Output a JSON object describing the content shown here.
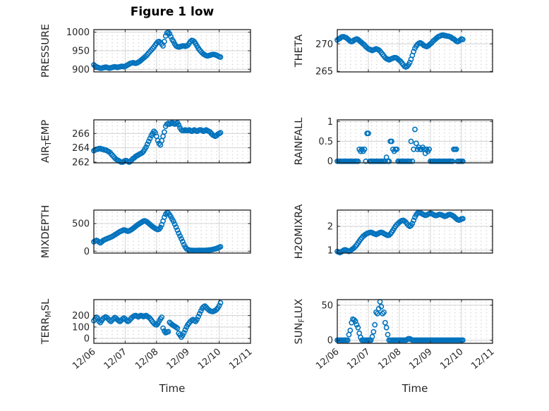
{
  "title": "Figure 1 low",
  "xlabel": "Time",
  "x_tick_labels": [
    "12/06",
    "12/07",
    "12/08",
    "12/09",
    "12/10",
    "12/11"
  ],
  "x_axis_hours": [
    0,
    120
  ],
  "x_major_every_hours": 24,
  "colors": {
    "marker": "#0072BD",
    "axis": "#1f1f1f",
    "grid": "#d4d4d4",
    "minor_dots": "#c4c4c4",
    "tick_text": "#262626"
  },
  "chart_data": [
    {
      "type": "scatter",
      "name": "PRESSURE",
      "grid_row": 0,
      "grid_col": 0,
      "ylabel_parts": [
        {
          "t": "PRESSURE"
        }
      ],
      "ylim": [
        893,
        1007
      ],
      "yticks": [
        900,
        950,
        1000
      ],
      "x_start_hour": 0,
      "x_step_hours": 1,
      "values": [
        912,
        909,
        907,
        905,
        904,
        903,
        903,
        904,
        905,
        906,
        905,
        904,
        903,
        904,
        905,
        906,
        907,
        906,
        905,
        906,
        907,
        908,
        908,
        907,
        908,
        910,
        912,
        914,
        916,
        917,
        918,
        917,
        916,
        917,
        919,
        921,
        924,
        927,
        930,
        933,
        936,
        940,
        944,
        948,
        952,
        956,
        960,
        965,
        970,
        974,
        975,
        972,
        968,
        963,
        975,
        990,
        998,
        1000,
        996,
        988,
        980,
        975,
        968,
        963,
        961,
        960,
        961,
        962,
        963,
        963,
        962,
        963,
        965,
        970,
        975,
        978,
        977,
        974,
        969,
        963,
        957,
        952,
        948,
        944,
        941,
        939,
        937,
        936,
        937,
        938,
        939,
        940,
        940,
        939,
        938,
        936,
        934,
        933
      ]
    },
    {
      "type": "scatter",
      "name": "THETA",
      "grid_row": 0,
      "grid_col": 1,
      "ylabel_parts": [
        {
          "t": "THETA"
        }
      ],
      "ylim": [
        264.9,
        272.6
      ],
      "yticks": [
        265,
        270
      ],
      "x_start_hour": 0,
      "x_step_hours": 1,
      "values": [
        270.7,
        270.9,
        271.0,
        271.2,
        271.3,
        271.3,
        271.2,
        271.1,
        270.9,
        270.7,
        270.5,
        270.4,
        270.5,
        270.7,
        270.8,
        270.9,
        270.8,
        270.6,
        270.4,
        270.2,
        270.0,
        269.8,
        269.5,
        269.3,
        269.1,
        269.0,
        268.9,
        268.8,
        268.9,
        269.0,
        269.1,
        269.0,
        268.9,
        268.7,
        268.4,
        268.1,
        267.8,
        267.5,
        267.3,
        267.2,
        267.1,
        267.2,
        267.3,
        267.4,
        267.5,
        267.5,
        267.4,
        267.2,
        267.0,
        266.8,
        266.5,
        266.2,
        265.9,
        265.8,
        265.9,
        266.2,
        266.6,
        267.2,
        267.9,
        268.6,
        269.2,
        269.6,
        269.9,
        270.1,
        270.2,
        270.1,
        269.9,
        269.7,
        269.6,
        269.5,
        269.6,
        269.8,
        270.0,
        270.2,
        270.5,
        270.7,
        270.9,
        271.1,
        271.3,
        271.4,
        271.5,
        271.6,
        271.6,
        271.5,
        271.5,
        271.4,
        271.4,
        271.3,
        271.2,
        271.0,
        270.9,
        270.7,
        270.5,
        270.4,
        270.5,
        270.7,
        270.9,
        270.8
      ]
    },
    {
      "type": "scatter",
      "name": "AIR_TEMP",
      "grid_row": 1,
      "grid_col": 0,
      "ylabel_parts": [
        {
          "t": "AIR"
        },
        {
          "t": "T",
          "sub": true
        },
        {
          "t": "EMP"
        }
      ],
      "ylim": [
        261.9,
        267.9
      ],
      "yticks": [
        262,
        264,
        266
      ],
      "x_start_hour": 0,
      "x_step_hours": 1,
      "values": [
        263.6,
        263.7,
        263.8,
        263.8,
        263.9,
        263.9,
        263.8,
        263.8,
        263.7,
        263.7,
        263.6,
        263.5,
        263.4,
        263.2,
        263.0,
        262.8,
        262.6,
        262.4,
        262.3,
        262.2,
        262.1,
        262.0,
        262.0,
        262.1,
        262.2,
        262.2,
        262.1,
        262.0,
        262.1,
        262.3,
        262.5,
        262.6,
        262.8,
        262.9,
        263.0,
        263.1,
        263.2,
        263.3,
        263.5,
        263.8,
        264.1,
        264.5,
        264.9,
        265.3,
        265.7,
        266.0,
        266.3,
        266.1,
        265.6,
        265.0,
        264.6,
        264.4,
        265.0,
        265.6,
        266.2,
        267.0,
        267.3,
        267.4,
        267.3,
        267.4,
        267.5,
        267.4,
        267.3,
        267.4,
        267.5,
        267.2,
        266.8,
        266.5,
        266.4,
        266.4,
        266.5,
        266.4,
        266.4,
        266.5,
        266.4,
        266.3,
        266.4,
        266.5,
        266.4,
        266.3,
        266.4,
        266.5,
        266.5,
        266.4,
        266.3,
        266.4,
        266.5,
        266.4,
        266.3,
        266.2,
        266.0,
        265.8,
        265.7,
        265.6,
        265.7,
        265.9,
        266.0,
        266.1
      ]
    },
    {
      "type": "scatter",
      "name": "RAINFALL",
      "grid_row": 1,
      "grid_col": 1,
      "ylabel_parts": [
        {
          "t": "RAINFALL"
        }
      ],
      "ylim": [
        -0.04,
        1.04
      ],
      "yticks": [
        0,
        0.5,
        1
      ],
      "x_start_hour": 0,
      "x_step_hours": 1,
      "values": [
        0,
        0,
        0,
        0,
        0,
        0,
        0,
        0,
        0,
        0,
        0,
        0,
        0,
        0,
        0,
        0,
        0,
        0.3,
        0.25,
        0.3,
        0.25,
        0.3,
        0,
        0.7,
        0.7,
        0,
        0,
        0,
        0,
        0,
        0,
        0,
        0,
        0,
        0,
        0,
        0,
        0,
        0.1,
        0,
        0,
        0.5,
        0.5,
        0.3,
        0.25,
        0.3,
        0.3,
        0,
        0,
        0,
        0,
        0,
        0,
        0,
        0,
        0,
        0,
        0.5,
        0,
        0.3,
        0.8,
        0.45,
        0.3,
        0.35,
        0.3,
        0.3,
        0.35,
        0.3,
        0.2,
        0.3,
        0.25,
        0.3,
        0,
        0,
        0,
        0,
        0,
        0,
        0,
        0,
        0,
        0,
        0,
        0,
        0,
        0,
        0,
        0,
        0,
        0,
        0.3,
        0.3,
        0.3,
        0,
        0,
        0,
        0,
        0
      ]
    },
    {
      "type": "scatter",
      "name": "MIXDEPTH",
      "grid_row": 2,
      "grid_col": 0,
      "ylabel_parts": [
        {
          "t": "MIXDEPTH"
        }
      ],
      "ylim": [
        -35,
        745
      ],
      "yticks": [
        0,
        500
      ],
      "x_start_hour": 0,
      "x_step_hours": 1,
      "values": [
        170,
        185,
        195,
        185,
        165,
        150,
        170,
        190,
        205,
        215,
        225,
        235,
        245,
        255,
        265,
        280,
        295,
        310,
        325,
        340,
        355,
        365,
        375,
        385,
        380,
        370,
        362,
        368,
        380,
        395,
        412,
        430,
        450,
        468,
        485,
        500,
        515,
        530,
        545,
        550,
        540,
        525,
        505,
        485,
        465,
        445,
        428,
        412,
        400,
        392,
        400,
        430,
        480,
        545,
        615,
        670,
        700,
        690,
        660,
        625,
        580,
        540,
        490,
        435,
        380,
        325,
        275,
        225,
        175,
        120,
        75,
        45,
        28,
        20,
        16,
        14,
        13,
        12,
        12,
        13,
        14,
        15,
        15,
        14,
        13,
        14,
        16,
        18,
        20,
        22,
        25,
        30,
        36,
        42,
        50,
        58,
        68,
        80
      ]
    },
    {
      "type": "scatter",
      "name": "H2OMIXRA",
      "grid_row": 2,
      "grid_col": 1,
      "ylabel_parts": [
        {
          "t": "H2OMIXRA"
        }
      ],
      "ylim": [
        0.88,
        2.68
      ],
      "yticks": [
        1,
        2
      ],
      "x_start_hour": 0,
      "x_step_hours": 1,
      "values": [
        0.95,
        0.92,
        0.9,
        0.93,
        0.96,
        1.0,
        1.02,
        1.0,
        0.97,
        0.95,
        0.98,
        1.02,
        1.06,
        1.1,
        1.16,
        1.22,
        1.3,
        1.38,
        1.46,
        1.52,
        1.58,
        1.63,
        1.67,
        1.7,
        1.72,
        1.74,
        1.75,
        1.73,
        1.7,
        1.68,
        1.66,
        1.68,
        1.71,
        1.74,
        1.75,
        1.73,
        1.7,
        1.67,
        1.64,
        1.62,
        1.63,
        1.68,
        1.75,
        1.83,
        1.92,
        2.0,
        2.07,
        2.12,
        2.17,
        2.21,
        2.24,
        2.25,
        2.22,
        2.17,
        2.1,
        2.04,
        2.0,
        2.03,
        2.12,
        2.25,
        2.38,
        2.48,
        2.55,
        2.58,
        2.57,
        2.54,
        2.51,
        2.48,
        2.46,
        2.47,
        2.5,
        2.53,
        2.55,
        2.53,
        2.5,
        2.47,
        2.45,
        2.46,
        2.48,
        2.5,
        2.49,
        2.47,
        2.44,
        2.42,
        2.43,
        2.46,
        2.49,
        2.5,
        2.48,
        2.45,
        2.42,
        2.37,
        2.32,
        2.28,
        2.26,
        2.28,
        2.31,
        2.32
      ]
    },
    {
      "type": "scatter",
      "name": "TERR_MSL",
      "grid_row": 3,
      "grid_col": 0,
      "ylabel_parts": [
        {
          "t": "TERR"
        },
        {
          "t": "M",
          "sub": true
        },
        {
          "t": "SL"
        }
      ],
      "ylim": [
        -42,
        338
      ],
      "yticks": [
        0,
        100,
        200
      ],
      "x_start_hour": 0,
      "x_step_hours": 1,
      "values": [
        155,
        170,
        185,
        175,
        150,
        138,
        155,
        172,
        180,
        188,
        182,
        170,
        158,
        148,
        160,
        172,
        182,
        176,
        165,
        155,
        148,
        158,
        170,
        178,
        170,
        158,
        148,
        155,
        168,
        180,
        190,
        196,
        200,
        194,
        188,
        194,
        200,
        196,
        190,
        195,
        200,
        192,
        185,
        175,
        160,
        145,
        132,
        122,
        118,
        130,
        150,
        170,
        185,
        90,
        65,
        50,
        55,
        60,
        140,
        130,
        120,
        112,
        105,
        98,
        90,
        45,
        30,
        12,
        28,
        50,
        75,
        100,
        120,
        135,
        148,
        158,
        165,
        155,
        148,
        165,
        190,
        215,
        240,
        262,
        275,
        282,
        272,
        258,
        248,
        240,
        236,
        234,
        238,
        244,
        252,
        265,
        285,
        310
      ]
    },
    {
      "type": "scatter",
      "name": "SUN_FLUX",
      "grid_row": 3,
      "grid_col": 1,
      "ylabel_parts": [
        {
          "t": "SUN"
        },
        {
          "t": "F",
          "sub": true
        },
        {
          "t": "LUX"
        }
      ],
      "ylim": [
        -4.5,
        58
      ],
      "yticks": [
        0,
        50
      ],
      "x_start_hour": 0,
      "x_step_hours": 1,
      "values": [
        0,
        0,
        0,
        0,
        0,
        0,
        0,
        0,
        0,
        8,
        14,
        25,
        30,
        29,
        27,
        22,
        18,
        10,
        4,
        0,
        0,
        0,
        0,
        0,
        0,
        0,
        0,
        5,
        12,
        22,
        40,
        38,
        45,
        55,
        48,
        38,
        40,
        25,
        18,
        8,
        0,
        0,
        0,
        0,
        0,
        0,
        0,
        0,
        0,
        0,
        0,
        0,
        0,
        0,
        1,
        2,
        2,
        1,
        0,
        0,
        0,
        0,
        0,
        0,
        0,
        0,
        0,
        0,
        0,
        0,
        0,
        0,
        0,
        0,
        0,
        0,
        0,
        0,
        0,
        0,
        0,
        0,
        0,
        0,
        0,
        0,
        0,
        0,
        0,
        0,
        0,
        0,
        0,
        0,
        0,
        0,
        0,
        0
      ]
    }
  ]
}
